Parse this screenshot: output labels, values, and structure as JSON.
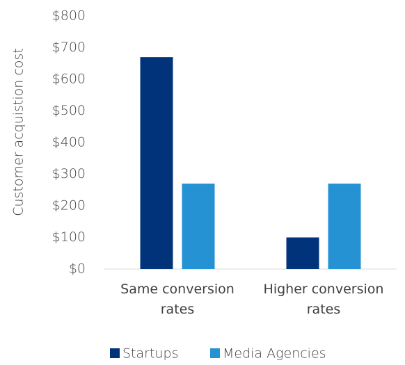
{
  "chart_data": {
    "type": "bar",
    "y_label": "Customer acquistion cost",
    "categories": [
      "Same conversion rates",
      "Higher conversion rates"
    ],
    "series": [
      {
        "name": "Startups",
        "color": "#00337a",
        "values": [
          670,
          100
        ]
      },
      {
        "name": "Media Agencies",
        "color": "#2592d3",
        "values": [
          270,
          270
        ]
      }
    ],
    "ylim": [
      0,
      800
    ],
    "yticks": [
      {
        "value": 0,
        "label": "$0"
      },
      {
        "value": 100,
        "label": "$100"
      },
      {
        "value": 200,
        "label": "$200"
      },
      {
        "value": 300,
        "label": "$300"
      },
      {
        "value": 400,
        "label": "$400"
      },
      {
        "value": 500,
        "label": "$500"
      },
      {
        "value": 600,
        "label": "$600"
      },
      {
        "value": 700,
        "label": "$700"
      },
      {
        "value": 800,
        "label": "$800"
      }
    ],
    "grid": false,
    "legend": "bottom"
  }
}
